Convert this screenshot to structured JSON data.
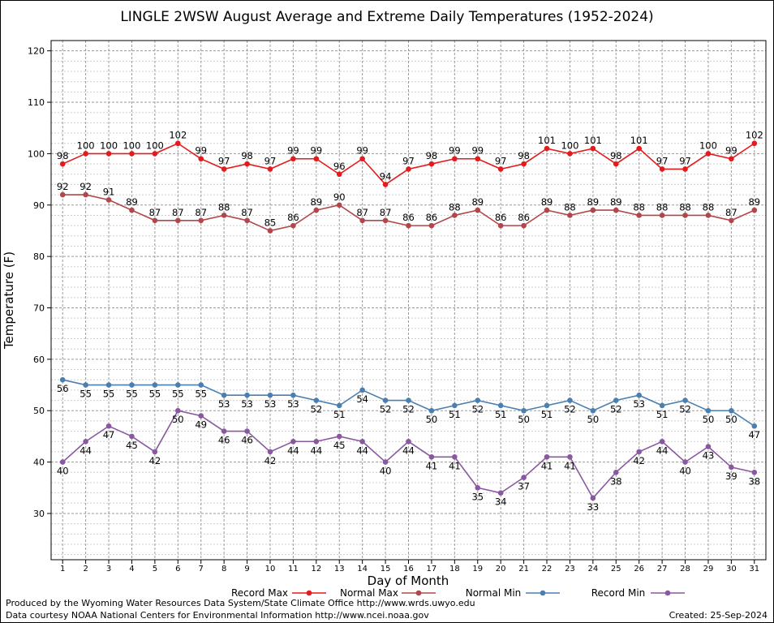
{
  "chart_data": {
    "type": "line",
    "title": "LINGLE 2WSW August Average and Extreme Daily Temperatures (1952-2024)",
    "xlabel": "Day of Month",
    "ylabel": "Temperature (F)",
    "xlim": [
      0.5,
      31.5
    ],
    "ylim": [
      21,
      122
    ],
    "yticks": [
      30,
      40,
      50,
      60,
      70,
      80,
      90,
      100,
      110,
      120
    ],
    "x": [
      1,
      2,
      3,
      4,
      5,
      6,
      7,
      8,
      9,
      10,
      11,
      12,
      13,
      14,
      15,
      16,
      17,
      18,
      19,
      20,
      21,
      22,
      23,
      24,
      25,
      26,
      27,
      28,
      29,
      30,
      31
    ],
    "grid": true,
    "legend_position": "bottom",
    "series": [
      {
        "name": "Record Max",
        "color": "#e41a1c",
        "label_pos": "above",
        "values": [
          98,
          100,
          100,
          100,
          100,
          102,
          99,
          97,
          98,
          97,
          99,
          99,
          96,
          99,
          94,
          97,
          98,
          99,
          99,
          97,
          98,
          101,
          100,
          101,
          98,
          101,
          97,
          97,
          100,
          99,
          102
        ]
      },
      {
        "name": "Normal Max",
        "color": "#b2474b",
        "label_pos": "above",
        "values": [
          92,
          92,
          91,
          89,
          87,
          87,
          87,
          88,
          87,
          85,
          86,
          89,
          90,
          87,
          87,
          86,
          86,
          88,
          89,
          86,
          86,
          89,
          88,
          89,
          89,
          88,
          88,
          88,
          88,
          87,
          89
        ]
      },
      {
        "name": "Normal Min",
        "color": "#4a7fb0",
        "label_pos": "below",
        "values": [
          56,
          55,
          55,
          55,
          55,
          55,
          55,
          53,
          53,
          53,
          53,
          52,
          51,
          54,
          52,
          52,
          50,
          51,
          52,
          51,
          50,
          51,
          52,
          50,
          52,
          53,
          51,
          52,
          50,
          50,
          47
        ]
      },
      {
        "name": "Record Min",
        "color": "#8a58a0",
        "label_pos": "below",
        "values": [
          40,
          44,
          47,
          45,
          42,
          50,
          49,
          46,
          46,
          42,
          44,
          44,
          45,
          44,
          40,
          44,
          41,
          41,
          35,
          34,
          37,
          41,
          41,
          33,
          38,
          42,
          44,
          40,
          43,
          39,
          38
        ]
      }
    ]
  },
  "footer": {
    "produced_by": "Produced by the Wyoming Water Resources Data System/State Climate Office http://www.wrds.uwyo.edu",
    "data_courtesy": "Data courtesy NOAA National Centers for Environmental Information http://www.ncei.noaa.gov",
    "created": "Created: 25-Sep-2024"
  }
}
